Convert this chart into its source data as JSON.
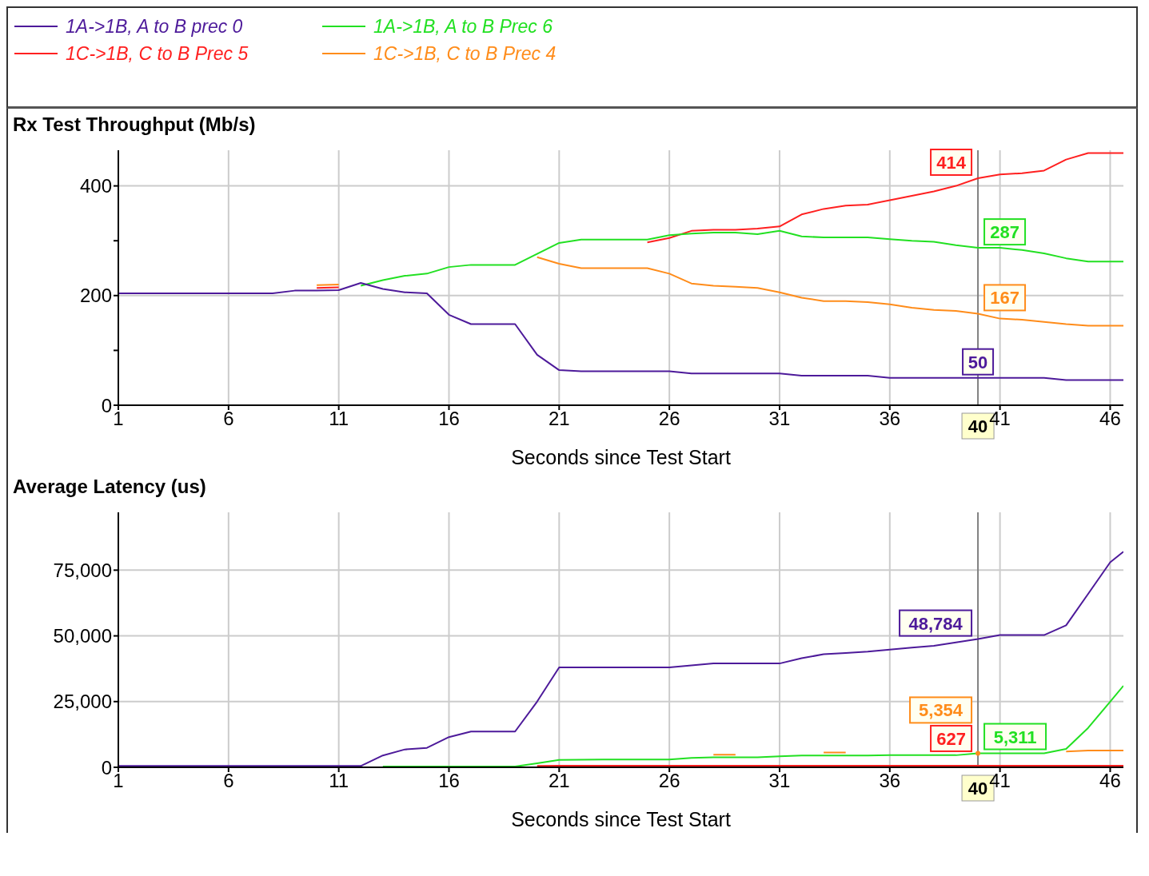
{
  "chart_data": [
    {
      "type": "line",
      "title": "Rx Test Throughput (Mb/s)",
      "xlabel": "Seconds since Test Start",
      "legend": "top",
      "grid": true,
      "marker": "none",
      "x": [
        1,
        2,
        3,
        4,
        5,
        6,
        7,
        8,
        9,
        10,
        11,
        12,
        13,
        14,
        15,
        16,
        17,
        18,
        19,
        20,
        21,
        22,
        23,
        24,
        25,
        26,
        27,
        28,
        29,
        30,
        31,
        32,
        33,
        34,
        35,
        36,
        37,
        38,
        39,
        40,
        41,
        42,
        43,
        44,
        45,
        46,
        46.6
      ],
      "xlim": [
        1,
        46.6
      ],
      "xticks": [
        1,
        6,
        11,
        16,
        21,
        26,
        31,
        36,
        41,
        46
      ],
      "ylim": [
        0,
        465
      ],
      "yticks": [
        0,
        {
          "value": 100,
          "label": null
        },
        200,
        {
          "value": 300,
          "label": null
        },
        400
      ],
      "ref_lines": [
        {
          "axis": "x",
          "value": 40,
          "label": "40",
          "color": "#808080"
        }
      ],
      "series": [
        {
          "name": "1A->1B, A to B prec 0",
          "color": "#4d1a9a",
          "values": [
            204,
            204,
            204,
            204,
            204,
            204,
            204,
            204,
            209,
            209,
            210,
            223,
            212,
            206,
            204,
            165,
            148,
            148,
            148,
            92,
            64,
            62,
            62,
            62,
            62,
            62,
            58,
            58,
            58,
            58,
            58,
            54,
            54,
            54,
            54,
            50,
            50,
            50,
            50,
            50,
            50,
            50,
            50,
            46,
            46,
            46,
            46
          ],
          "value_labels": [
            null,
            null,
            null,
            null,
            null,
            null,
            null,
            null,
            null,
            null,
            null,
            null,
            null,
            null,
            null,
            null,
            null,
            null,
            null,
            null,
            null,
            null,
            null,
            null,
            null,
            null,
            null,
            null,
            null,
            null,
            null,
            null,
            null,
            null,
            null,
            null,
            null,
            null,
            null,
            "50",
            null,
            null,
            null,
            null,
            null,
            null,
            null
          ]
        },
        {
          "name": "1A->1B, A to B Prec 6",
          "color": "#22e022",
          "values": [
            null,
            null,
            null,
            null,
            null,
            null,
            null,
            null,
            null,
            null,
            null,
            218,
            228,
            236,
            240,
            252,
            256,
            256,
            256,
            276,
            296,
            302,
            302,
            302,
            302,
            310,
            313,
            315,
            315,
            312,
            318,
            308,
            306,
            306,
            306,
            303,
            300,
            298,
            292,
            287,
            287,
            283,
            277,
            268,
            262,
            262,
            262
          ],
          "value_labels": [
            null,
            null,
            null,
            null,
            null,
            null,
            null,
            null,
            null,
            null,
            null,
            null,
            null,
            null,
            null,
            null,
            null,
            null,
            null,
            null,
            null,
            null,
            null,
            null,
            null,
            null,
            null,
            null,
            null,
            null,
            null,
            null,
            null,
            null,
            null,
            null,
            null,
            null,
            null,
            "287",
            null,
            null,
            null,
            null,
            null,
            null,
            null
          ]
        },
        {
          "name": "1C->1B, C to B Prec 5",
          "color": "#ff2020",
          "values": [
            null,
            null,
            null,
            null,
            null,
            null,
            null,
            null,
            null,
            214,
            215,
            null,
            null,
            null,
            null,
            null,
            null,
            null,
            null,
            null,
            null,
            null,
            null,
            null,
            297,
            305,
            318,
            320,
            320,
            322,
            326,
            348,
            358,
            364,
            366,
            374,
            382,
            390,
            400,
            414,
            421,
            423,
            428,
            448,
            460,
            460,
            460
          ],
          "value_labels": [
            null,
            null,
            null,
            null,
            null,
            null,
            null,
            null,
            null,
            null,
            null,
            null,
            null,
            null,
            null,
            null,
            null,
            null,
            null,
            null,
            null,
            null,
            null,
            null,
            null,
            null,
            null,
            null,
            null,
            null,
            null,
            null,
            null,
            null,
            null,
            null,
            null,
            null,
            null,
            "414",
            null,
            null,
            null,
            null,
            null,
            null,
            null
          ]
        },
        {
          "name": "1C->1B, C to B Prec 4",
          "color": "#ff8c1a",
          "values": [
            null,
            null,
            null,
            null,
            null,
            null,
            null,
            null,
            null,
            219,
            220,
            null,
            null,
            null,
            null,
            null,
            null,
            null,
            null,
            270,
            258,
            250,
            250,
            250,
            250,
            240,
            222,
            218,
            216,
            214,
            206,
            196,
            190,
            190,
            188,
            184,
            178,
            174,
            172,
            167,
            158,
            156,
            152,
            148,
            145,
            145,
            145
          ],
          "value_labels": [
            null,
            null,
            null,
            null,
            null,
            null,
            null,
            null,
            null,
            null,
            null,
            null,
            null,
            null,
            null,
            null,
            null,
            null,
            null,
            null,
            null,
            null,
            null,
            null,
            null,
            null,
            null,
            null,
            null,
            null,
            null,
            null,
            null,
            null,
            null,
            null,
            null,
            null,
            null,
            "167",
            null,
            null,
            null,
            null,
            null,
            null,
            null
          ]
        }
      ]
    },
    {
      "type": "line",
      "title": "Average Latency (us)",
      "xlabel": "Seconds since Test Start",
      "grid": true,
      "marker": "none",
      "x": [
        1,
        2,
        3,
        4,
        5,
        6,
        7,
        8,
        9,
        10,
        11,
        12,
        13,
        14,
        15,
        16,
        17,
        18,
        19,
        20,
        21,
        22,
        23,
        24,
        25,
        26,
        27,
        28,
        29,
        30,
        31,
        32,
        33,
        34,
        35,
        36,
        37,
        38,
        39,
        40,
        41,
        42,
        43,
        44,
        45,
        46,
        46.6
      ],
      "xlim": [
        1,
        46.6
      ],
      "xticks": [
        1,
        6,
        11,
        16,
        21,
        26,
        31,
        36,
        41,
        46
      ],
      "ylim": [
        0,
        97000
      ],
      "yticks": [
        0,
        {
          "value": 25000,
          "label": "25,000"
        },
        {
          "value": 50000,
          "label": "50,000"
        },
        {
          "value": 75000,
          "label": "75,000"
        }
      ],
      "ref_lines": [
        {
          "axis": "x",
          "value": 40,
          "label": "40",
          "color": "#808080"
        }
      ],
      "series": [
        {
          "color": "#4d1a9a",
          "values": [
            500,
            500,
            500,
            500,
            500,
            500,
            500,
            500,
            500,
            500,
            500,
            500,
            4500,
            6800,
            7400,
            11500,
            13600,
            13600,
            13600,
            25000,
            38000,
            38000,
            38000,
            38000,
            38000,
            38000,
            38800,
            39500,
            39500,
            39500,
            39500,
            41500,
            43000,
            43500,
            44000,
            44800,
            45500,
            46200,
            47500,
            48784,
            50300,
            50300,
            50300,
            54000,
            66000,
            78000,
            82000
          ],
          "value_labels": [
            null,
            null,
            null,
            null,
            null,
            null,
            null,
            null,
            null,
            null,
            null,
            null,
            null,
            null,
            null,
            null,
            null,
            null,
            null,
            null,
            null,
            null,
            null,
            null,
            null,
            null,
            null,
            null,
            null,
            null,
            null,
            null,
            null,
            null,
            null,
            null,
            null,
            null,
            null,
            "48,784",
            null,
            null,
            null,
            null,
            null,
            null,
            null
          ]
        },
        {
          "color": "#22e022",
          "values": [
            null,
            null,
            null,
            null,
            null,
            null,
            null,
            null,
            null,
            null,
            null,
            null,
            300,
            300,
            300,
            300,
            300,
            300,
            300,
            1500,
            2800,
            2900,
            3000,
            3000,
            3000,
            3000,
            3600,
            3800,
            3800,
            3800,
            4200,
            4500,
            4500,
            4500,
            4500,
            4600,
            4600,
            4600,
            4600,
            5311,
            5300,
            5300,
            5300,
            7000,
            15000,
            25000,
            31000
          ],
          "value_labels": [
            null,
            null,
            null,
            null,
            null,
            null,
            null,
            null,
            null,
            null,
            null,
            null,
            null,
            null,
            null,
            null,
            null,
            null,
            null,
            null,
            null,
            null,
            null,
            null,
            null,
            null,
            null,
            null,
            null,
            null,
            null,
            null,
            null,
            null,
            null,
            null,
            null,
            null,
            null,
            "5,311",
            null,
            null,
            null,
            null,
            null,
            null,
            null
          ]
        },
        {
          "color": "#ff2020",
          "values": [
            null,
            null,
            null,
            null,
            null,
            null,
            null,
            null,
            null,
            null,
            null,
            null,
            null,
            null,
            null,
            null,
            null,
            null,
            null,
            500,
            600,
            600,
            600,
            600,
            600,
            600,
            600,
            600,
            600,
            600,
            600,
            600,
            600,
            600,
            600,
            600,
            600,
            600,
            600,
            627,
            600,
            600,
            600,
            600,
            600,
            600,
            600
          ],
          "value_labels": [
            null,
            null,
            null,
            null,
            null,
            null,
            null,
            null,
            null,
            null,
            null,
            null,
            null,
            null,
            null,
            null,
            null,
            null,
            null,
            null,
            null,
            null,
            null,
            null,
            null,
            null,
            null,
            null,
            null,
            null,
            null,
            null,
            null,
            null,
            null,
            null,
            null,
            null,
            null,
            "627",
            null,
            null,
            null,
            null,
            null,
            null,
            null
          ]
        },
        {
          "color": "#ff8c1a",
          "values": [
            null,
            null,
            null,
            null,
            null,
            null,
            null,
            null,
            null,
            null,
            null,
            null,
            null,
            null,
            null,
            null,
            null,
            null,
            null,
            null,
            null,
            null,
            null,
            null,
            null,
            null,
            null,
            4800,
            4800,
            null,
            null,
            null,
            5600,
            5600,
            null,
            null,
            null,
            null,
            null,
            5354,
            null,
            null,
            null,
            6000,
            6400,
            6400,
            6400
          ],
          "value_labels": [
            null,
            null,
            null,
            null,
            null,
            null,
            null,
            null,
            null,
            null,
            null,
            null,
            null,
            null,
            null,
            null,
            null,
            null,
            null,
            null,
            null,
            null,
            null,
            null,
            null,
            null,
            null,
            null,
            null,
            null,
            null,
            null,
            null,
            null,
            null,
            null,
            null,
            null,
            null,
            "5,354",
            null,
            null,
            null,
            null,
            null,
            null,
            null
          ]
        }
      ]
    }
  ]
}
